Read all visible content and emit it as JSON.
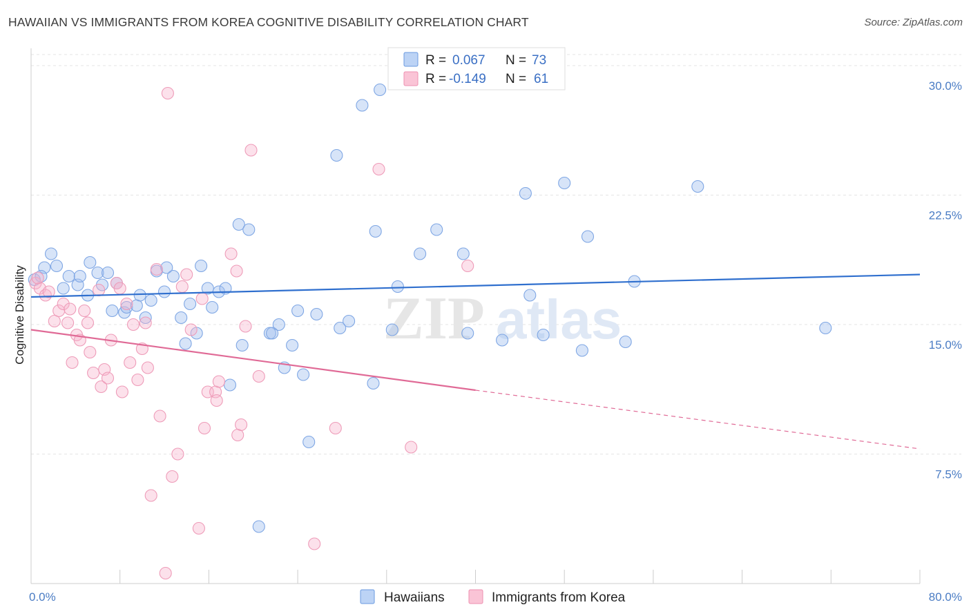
{
  "title": "HAWAIIAN VS IMMIGRANTS FROM KOREA COGNITIVE DISABILITY CORRELATION CHART",
  "source": "Source: ZipAtlas.com",
  "watermark": {
    "zip": "ZIP",
    "atlas": "atlas"
  },
  "legend_top": [
    {
      "r_label": "R =",
      "r_value": "0.067",
      "n_label": "N =",
      "n_value": "73"
    },
    {
      "r_label": "R =",
      "r_value": "-0.149",
      "n_label": "N =",
      "n_value": "61"
    }
  ],
  "legend_bottom": [
    "Hawaiians",
    "Immigrants from Korea"
  ],
  "chart_data": {
    "type": "scatter",
    "title": "HAWAIIAN VS IMMIGRANTS FROM KOREA COGNITIVE DISABILITY CORRELATION CHART",
    "xlabel": "",
    "ylabel": "Cognitive Disability",
    "xlim": [
      0,
      80
    ],
    "ylim": [
      0,
      31
    ],
    "x_tick_labels": [
      "0.0%",
      "80.0%"
    ],
    "y_ticks": [
      7.5,
      15.0,
      22.5,
      30.0
    ],
    "y_tick_labels": [
      "7.5%",
      "15.0%",
      "22.5%",
      "30.0%"
    ],
    "grid": true,
    "legend_position": "top-center",
    "colors": {
      "Hawaiians": "#6a9ae0",
      "Immigrants from Korea": "#ee8fb0",
      "blue_line": "#2f6fce",
      "pink_line": "#e06a96"
    },
    "series": [
      {
        "name": "Hawaiians",
        "trend": {
          "x0": 0,
          "y0": 16.6,
          "x1": 80,
          "y1": 17.9
        },
        "points": [
          [
            0.3,
            17.6
          ],
          [
            1.2,
            18.3
          ],
          [
            1.8,
            19.1
          ],
          [
            2.3,
            18.4
          ],
          [
            2.9,
            17.1
          ],
          [
            3.4,
            17.8
          ],
          [
            4.2,
            17.3
          ],
          [
            4.4,
            17.8
          ],
          [
            5.1,
            16.7
          ],
          [
            5.3,
            18.6
          ],
          [
            6.0,
            18.0
          ],
          [
            6.4,
            17.3
          ],
          [
            6.9,
            18.0
          ],
          [
            7.3,
            15.8
          ],
          [
            7.7,
            17.4
          ],
          [
            8.4,
            15.7
          ],
          [
            8.6,
            16.0
          ],
          [
            9.5,
            16.1
          ],
          [
            9.8,
            16.7
          ],
          [
            10.3,
            15.4
          ],
          [
            10.8,
            16.4
          ],
          [
            11.3,
            18.1
          ],
          [
            12.0,
            16.9
          ],
          [
            12.2,
            18.3
          ],
          [
            12.8,
            17.8
          ],
          [
            13.5,
            15.4
          ],
          [
            13.9,
            13.9
          ],
          [
            14.3,
            16.2
          ],
          [
            14.9,
            14.5
          ],
          [
            15.3,
            18.4
          ],
          [
            15.9,
            17.1
          ],
          [
            16.3,
            16.0
          ],
          [
            16.9,
            16.9
          ],
          [
            17.5,
            17.1
          ],
          [
            17.9,
            11.5
          ],
          [
            18.7,
            20.8
          ],
          [
            19.0,
            13.8
          ],
          [
            19.6,
            20.5
          ],
          [
            20.5,
            3.3
          ],
          [
            21.5,
            14.5
          ],
          [
            21.7,
            14.5
          ],
          [
            22.3,
            15.0
          ],
          [
            22.8,
            12.5
          ],
          [
            23.5,
            13.8
          ],
          [
            24.0,
            15.8
          ],
          [
            24.5,
            12.1
          ],
          [
            25.0,
            8.2
          ],
          [
            25.7,
            15.6
          ],
          [
            27.5,
            24.8
          ],
          [
            27.8,
            14.8
          ],
          [
            28.6,
            15.2
          ],
          [
            29.8,
            27.7
          ],
          [
            30.8,
            11.6
          ],
          [
            31.0,
            20.4
          ],
          [
            31.4,
            28.6
          ],
          [
            32.5,
            14.7
          ],
          [
            33.0,
            17.2
          ],
          [
            35.0,
            19.1
          ],
          [
            36.5,
            20.5
          ],
          [
            38.9,
            19.1
          ],
          [
            39.3,
            14.5
          ],
          [
            42.4,
            14.1
          ],
          [
            44.5,
            22.6
          ],
          [
            44.9,
            16.7
          ],
          [
            46.1,
            14.4
          ],
          [
            48.0,
            23.2
          ],
          [
            49.6,
            13.5
          ],
          [
            50.1,
            20.1
          ],
          [
            53.5,
            14.0
          ],
          [
            54.3,
            17.5
          ],
          [
            60.0,
            23.0
          ],
          [
            71.5,
            14.8
          ],
          [
            0.9,
            17.8
          ]
        ]
      },
      {
        "name": "Immigrants from Korea",
        "trend": {
          "x0": 0,
          "y0": 14.7,
          "x1": 40,
          "y1": 11.2,
          "dash_to_x": 80,
          "dash_to_y": 7.8
        },
        "points": [
          [
            0.4,
            17.4
          ],
          [
            0.8,
            17.1
          ],
          [
            1.3,
            16.7
          ],
          [
            1.6,
            16.9
          ],
          [
            2.1,
            15.2
          ],
          [
            2.5,
            15.8
          ],
          [
            2.9,
            16.2
          ],
          [
            3.3,
            15.1
          ],
          [
            3.5,
            15.9
          ],
          [
            3.7,
            12.8
          ],
          [
            4.1,
            14.4
          ],
          [
            4.4,
            14.1
          ],
          [
            4.8,
            15.8
          ],
          [
            5.1,
            15.1
          ],
          [
            5.3,
            13.4
          ],
          [
            5.6,
            12.2
          ],
          [
            6.1,
            17.0
          ],
          [
            6.3,
            11.4
          ],
          [
            6.6,
            12.4
          ],
          [
            6.9,
            11.9
          ],
          [
            7.2,
            14.1
          ],
          [
            7.7,
            17.4
          ],
          [
            8.0,
            17.1
          ],
          [
            8.2,
            11.1
          ],
          [
            8.6,
            16.2
          ],
          [
            8.9,
            12.8
          ],
          [
            9.2,
            15.0
          ],
          [
            9.6,
            11.8
          ],
          [
            10.0,
            13.6
          ],
          [
            10.3,
            15.1
          ],
          [
            10.5,
            12.5
          ],
          [
            10.8,
            5.1
          ],
          [
            11.3,
            18.2
          ],
          [
            11.6,
            9.7
          ],
          [
            12.1,
            0.6
          ],
          [
            12.3,
            28.4
          ],
          [
            12.7,
            6.2
          ],
          [
            13.2,
            7.5
          ],
          [
            13.6,
            17.2
          ],
          [
            14.0,
            17.9
          ],
          [
            14.4,
            14.7
          ],
          [
            15.1,
            3.2
          ],
          [
            15.4,
            16.5
          ],
          [
            15.6,
            9.0
          ],
          [
            15.9,
            11.1
          ],
          [
            16.6,
            11.1
          ],
          [
            16.7,
            10.6
          ],
          [
            16.9,
            11.7
          ],
          [
            18.0,
            19.1
          ],
          [
            18.5,
            18.1
          ],
          [
            18.6,
            8.6
          ],
          [
            18.9,
            9.2
          ],
          [
            19.3,
            14.9
          ],
          [
            19.8,
            25.1
          ],
          [
            20.5,
            12.0
          ],
          [
            25.5,
            2.3
          ],
          [
            27.4,
            9.0
          ],
          [
            31.3,
            24.0
          ],
          [
            34.2,
            7.9
          ],
          [
            39.3,
            18.4
          ],
          [
            0.6,
            17.7
          ]
        ]
      }
    ]
  }
}
